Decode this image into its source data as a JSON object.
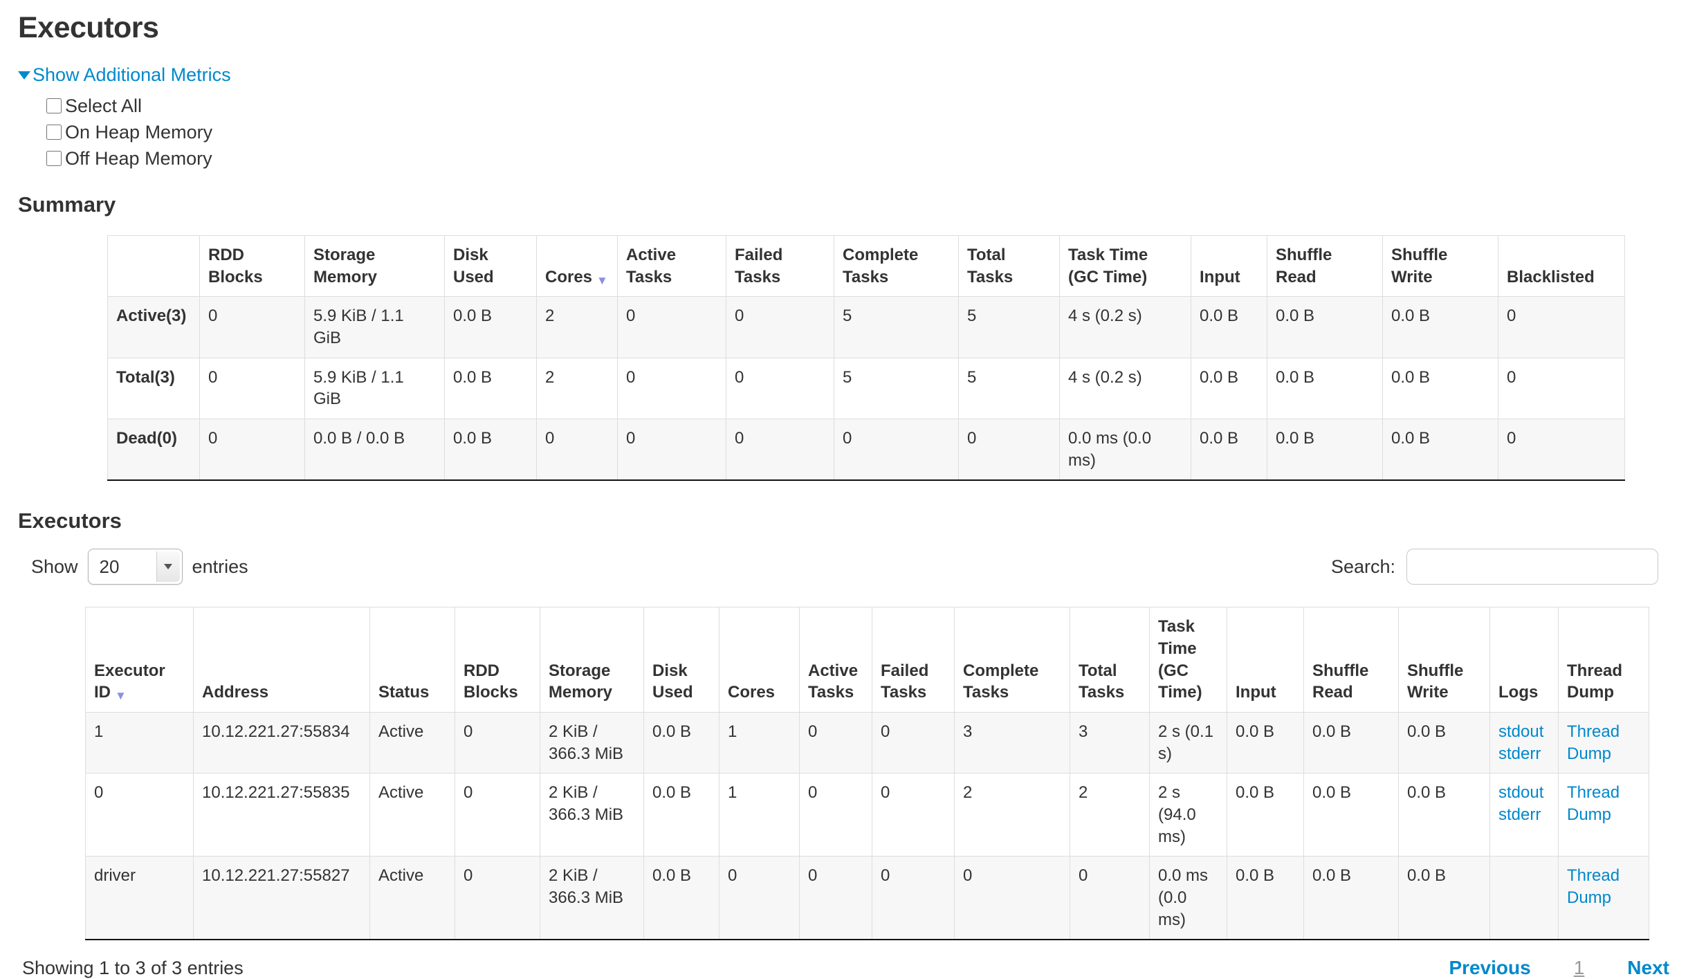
{
  "colors": {
    "link": "#0088cc",
    "sort_arrow": "#8990e3",
    "muted": "#999999",
    "text": "#333333",
    "border": "#dddddd",
    "stripe": "#f7f7f7",
    "dark_rule": "#111111"
  },
  "page": {
    "title": "Executors",
    "metrics_toggle_label": "Show Additional Metrics",
    "checkboxes": [
      {
        "label": "Select All",
        "checked": false
      },
      {
        "label": "On Heap Memory",
        "checked": false
      },
      {
        "label": "Off Heap Memory",
        "checked": false
      }
    ]
  },
  "summary": {
    "heading": "Summary",
    "columns": [
      {
        "label": ""
      },
      {
        "label": "RDD Blocks"
      },
      {
        "label": "Storage Memory"
      },
      {
        "label": "Disk Used"
      },
      {
        "label": "Cores",
        "sorted": "desc"
      },
      {
        "label": "Active Tasks"
      },
      {
        "label": "Failed Tasks"
      },
      {
        "label": "Complete Tasks"
      },
      {
        "label": "Total Tasks"
      },
      {
        "label": "Task Time\n(GC Time)"
      },
      {
        "label": "Input"
      },
      {
        "label": "Shuffle Read"
      },
      {
        "label": "Shuffle Write"
      },
      {
        "label": "Blacklisted"
      }
    ],
    "rows": [
      {
        "cells": [
          "Active(3)",
          "0",
          "5.9 KiB / 1.1 GiB",
          "0.0 B",
          "2",
          "0",
          "0",
          "5",
          "5",
          "4 s (0.2 s)",
          "0.0 B",
          "0.0 B",
          "0.0 B",
          "0"
        ]
      },
      {
        "cells": [
          "Total(3)",
          "0",
          "5.9 KiB / 1.1 GiB",
          "0.0 B",
          "2",
          "0",
          "0",
          "5",
          "5",
          "4 s (0.2 s)",
          "0.0 B",
          "0.0 B",
          "0.0 B",
          "0"
        ]
      },
      {
        "cells": [
          "Dead(0)",
          "0",
          "0.0 B / 0.0 B",
          "0.0 B",
          "0",
          "0",
          "0",
          "0",
          "0",
          "0.0 ms (0.0 ms)",
          "0.0 B",
          "0.0 B",
          "0.0 B",
          "0"
        ]
      }
    ]
  },
  "executors": {
    "heading": "Executors",
    "show_entries": {
      "label_before": "Show",
      "value": "20",
      "label_after": "entries"
    },
    "search": {
      "label": "Search:",
      "value": ""
    },
    "columns": [
      {
        "label": "Executor ID",
        "sorted": "desc"
      },
      {
        "label": "Address"
      },
      {
        "label": "Status"
      },
      {
        "label": "RDD Blocks"
      },
      {
        "label": "Storage Memory"
      },
      {
        "label": "Disk Used"
      },
      {
        "label": "Cores"
      },
      {
        "label": "Active Tasks"
      },
      {
        "label": "Failed Tasks"
      },
      {
        "label": "Complete Tasks"
      },
      {
        "label": "Total Tasks"
      },
      {
        "label": "Task Time\n(GC Time)"
      },
      {
        "label": "Input"
      },
      {
        "label": "Shuffle Read"
      },
      {
        "label": "Shuffle Write"
      },
      {
        "label": "Logs"
      },
      {
        "label": "Thread Dump"
      }
    ],
    "rows": [
      {
        "cells": [
          "1",
          "10.12.221.27:55834",
          "Active",
          "0",
          "2 KiB / 366.3 MiB",
          "0.0 B",
          "1",
          "0",
          "0",
          "3",
          "3",
          "2 s (0.1 s)",
          "0.0 B",
          "0.0 B",
          "0.0 B",
          {
            "links": [
              "stdout",
              "stderr"
            ]
          },
          {
            "links": [
              "Thread Dump"
            ]
          }
        ]
      },
      {
        "cells": [
          "0",
          "10.12.221.27:55835",
          "Active",
          "0",
          "2 KiB / 366.3 MiB",
          "0.0 B",
          "1",
          "0",
          "0",
          "2",
          "2",
          "2 s (94.0 ms)",
          "0.0 B",
          "0.0 B",
          "0.0 B",
          {
            "links": [
              "stdout",
              "stderr"
            ]
          },
          {
            "links": [
              "Thread Dump"
            ]
          }
        ]
      },
      {
        "cells": [
          "driver",
          "10.12.221.27:55827",
          "Active",
          "0",
          "2 KiB / 366.3 MiB",
          "0.0 B",
          "0",
          "0",
          "0",
          "0",
          "0",
          "0.0 ms (0.0 ms)",
          "0.0 B",
          "0.0 B",
          "0.0 B",
          "",
          {
            "links": [
              "Thread Dump"
            ]
          }
        ]
      }
    ],
    "footer": {
      "info": "Showing 1 to 3 of 3 entries",
      "previous": "Previous",
      "page": "1",
      "next": "Next"
    }
  }
}
